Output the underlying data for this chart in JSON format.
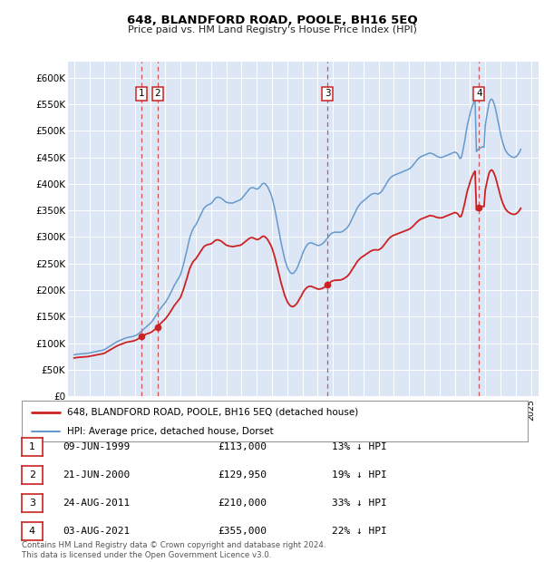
{
  "title": "648, BLANDFORD ROAD, POOLE, BH16 5EQ",
  "subtitle": "Price paid vs. HM Land Registry's House Price Index (HPI)",
  "ylabel_ticks": [
    "£0",
    "£50K",
    "£100K",
    "£150K",
    "£200K",
    "£250K",
    "£300K",
    "£350K",
    "£400K",
    "£450K",
    "£500K",
    "£550K",
    "£600K"
  ],
  "ytick_values": [
    0,
    50000,
    100000,
    150000,
    200000,
    250000,
    300000,
    350000,
    400000,
    450000,
    500000,
    550000,
    600000
  ],
  "ylim": [
    0,
    630000
  ],
  "xlim_start": 1994.6,
  "xlim_end": 2025.5,
  "background_color": "#dce6f5",
  "hpi_line_color": "#6699cc",
  "price_line_color": "#cc2222",
  "sale_marker_color": "#cc2222",
  "dashed_line_color": "#cc4444",
  "legend_label_price": "648, BLANDFORD ROAD, POOLE, BH16 5EQ (detached house)",
  "legend_label_hpi": "HPI: Average price, detached house, Dorset",
  "sales": [
    {
      "num": 1,
      "date": "09-JUN-1999",
      "price": 113000,
      "year": 1999.44,
      "pct": "13%"
    },
    {
      "num": 2,
      "date": "21-JUN-2000",
      "price": 129950,
      "year": 2000.47,
      "pct": "19%"
    },
    {
      "num": 3,
      "date": "24-AUG-2011",
      "price": 210000,
      "year": 2011.65,
      "pct": "33%"
    },
    {
      "num": 4,
      "date": "03-AUG-2021",
      "price": 355000,
      "year": 2021.59,
      "pct": "22%"
    }
  ],
  "table_rows": [
    {
      "num": 1,
      "date": "09-JUN-1999",
      "price": "£113,000",
      "pct": "13% ↓ HPI"
    },
    {
      "num": 2,
      "date": "21-JUN-2000",
      "price": "£129,950",
      "pct": "19% ↓ HPI"
    },
    {
      "num": 3,
      "date": "24-AUG-2011",
      "price": "£210,000",
      "pct": "33% ↓ HPI"
    },
    {
      "num": 4,
      "date": "03-AUG-2021",
      "price": "£355,000",
      "pct": "22% ↓ HPI"
    }
  ],
  "footnote": "Contains HM Land Registry data © Crown copyright and database right 2024.\nThis data is licensed under the Open Government Licence v3.0.",
  "hpi_years": [
    1995,
    1995.08,
    1995.17,
    1995.25,
    1995.33,
    1995.42,
    1995.5,
    1995.58,
    1995.67,
    1995.75,
    1995.83,
    1995.92,
    1996,
    1996.08,
    1996.17,
    1996.25,
    1996.33,
    1996.42,
    1996.5,
    1996.58,
    1996.67,
    1996.75,
    1996.83,
    1996.92,
    1997,
    1997.08,
    1997.17,
    1997.25,
    1997.33,
    1997.42,
    1997.5,
    1997.58,
    1997.67,
    1997.75,
    1997.83,
    1997.92,
    1998,
    1998.08,
    1998.17,
    1998.25,
    1998.33,
    1998.42,
    1998.5,
    1998.58,
    1998.67,
    1998.75,
    1998.83,
    1998.92,
    1999,
    1999.08,
    1999.17,
    1999.25,
    1999.33,
    1999.42,
    1999.5,
    1999.58,
    1999.67,
    1999.75,
    1999.83,
    1999.92,
    2000,
    2000.08,
    2000.17,
    2000.25,
    2000.33,
    2000.42,
    2000.5,
    2000.58,
    2000.67,
    2000.75,
    2000.83,
    2000.92,
    2001,
    2001.08,
    2001.17,
    2001.25,
    2001.33,
    2001.42,
    2001.5,
    2001.58,
    2001.67,
    2001.75,
    2001.83,
    2001.92,
    2002,
    2002.08,
    2002.17,
    2002.25,
    2002.33,
    2002.42,
    2002.5,
    2002.58,
    2002.67,
    2002.75,
    2002.83,
    2002.92,
    2003,
    2003.08,
    2003.17,
    2003.25,
    2003.33,
    2003.42,
    2003.5,
    2003.58,
    2003.67,
    2003.75,
    2003.83,
    2003.92,
    2004,
    2004.08,
    2004.17,
    2004.25,
    2004.33,
    2004.42,
    2004.5,
    2004.58,
    2004.67,
    2004.75,
    2004.83,
    2004.92,
    2005,
    2005.08,
    2005.17,
    2005.25,
    2005.33,
    2005.42,
    2005.5,
    2005.58,
    2005.67,
    2005.75,
    2005.83,
    2005.92,
    2006,
    2006.08,
    2006.17,
    2006.25,
    2006.33,
    2006.42,
    2006.5,
    2006.58,
    2006.67,
    2006.75,
    2006.83,
    2006.92,
    2007,
    2007.08,
    2007.17,
    2007.25,
    2007.33,
    2007.42,
    2007.5,
    2007.58,
    2007.67,
    2007.75,
    2007.83,
    2007.92,
    2008,
    2008.08,
    2008.17,
    2008.25,
    2008.33,
    2008.42,
    2008.5,
    2008.58,
    2008.67,
    2008.75,
    2008.83,
    2008.92,
    2009,
    2009.08,
    2009.17,
    2009.25,
    2009.33,
    2009.42,
    2009.5,
    2009.58,
    2009.67,
    2009.75,
    2009.83,
    2009.92,
    2010,
    2010.08,
    2010.17,
    2010.25,
    2010.33,
    2010.42,
    2010.5,
    2010.58,
    2010.67,
    2010.75,
    2010.83,
    2010.92,
    2011,
    2011.08,
    2011.17,
    2011.25,
    2011.33,
    2011.42,
    2011.5,
    2011.58,
    2011.67,
    2011.75,
    2011.83,
    2011.92,
    2012,
    2012.08,
    2012.17,
    2012.25,
    2012.33,
    2012.42,
    2012.5,
    2012.58,
    2012.67,
    2012.75,
    2012.83,
    2012.92,
    2013,
    2013.08,
    2013.17,
    2013.25,
    2013.33,
    2013.42,
    2013.5,
    2013.58,
    2013.67,
    2013.75,
    2013.83,
    2013.92,
    2014,
    2014.08,
    2014.17,
    2014.25,
    2014.33,
    2014.42,
    2014.5,
    2014.58,
    2014.67,
    2014.75,
    2014.83,
    2014.92,
    2015,
    2015.08,
    2015.17,
    2015.25,
    2015.33,
    2015.42,
    2015.5,
    2015.58,
    2015.67,
    2015.75,
    2015.83,
    2015.92,
    2016,
    2016.08,
    2016.17,
    2016.25,
    2016.33,
    2016.42,
    2016.5,
    2016.58,
    2016.67,
    2016.75,
    2016.83,
    2016.92,
    2017,
    2017.08,
    2017.17,
    2017.25,
    2017.33,
    2017.42,
    2017.5,
    2017.58,
    2017.67,
    2017.75,
    2017.83,
    2017.92,
    2018,
    2018.08,
    2018.17,
    2018.25,
    2018.33,
    2018.42,
    2018.5,
    2018.58,
    2018.67,
    2018.75,
    2018.83,
    2018.92,
    2019,
    2019.08,
    2019.17,
    2019.25,
    2019.33,
    2019.42,
    2019.5,
    2019.58,
    2019.67,
    2019.75,
    2019.83,
    2019.92,
    2020,
    2020.08,
    2020.17,
    2020.25,
    2020.33,
    2020.42,
    2020.5,
    2020.58,
    2020.67,
    2020.75,
    2020.83,
    2020.92,
    2021,
    2021.08,
    2021.17,
    2021.25,
    2021.33,
    2021.42,
    2021.5,
    2021.58,
    2021.67,
    2021.75,
    2021.83,
    2021.92,
    2022,
    2022.08,
    2022.17,
    2022.25,
    2022.33,
    2022.42,
    2022.5,
    2022.58,
    2022.67,
    2022.75,
    2022.83,
    2022.92,
    2023,
    2023.08,
    2023.17,
    2023.25,
    2023.33,
    2023.42,
    2023.5,
    2023.58,
    2023.67,
    2023.75,
    2023.83,
    2023.92,
    2024,
    2024.08,
    2024.17,
    2024.25,
    2024.33
  ],
  "hpi_values": [
    78000,
    78500,
    79000,
    79200,
    79500,
    79800,
    80000,
    80200,
    80300,
    80500,
    80700,
    81000,
    81500,
    82000,
    82500,
    83000,
    83500,
    84000,
    84500,
    85000,
    85500,
    86000,
    86500,
    87000,
    88000,
    89500,
    91000,
    92500,
    94000,
    95500,
    97000,
    98500,
    100000,
    101500,
    103000,
    104000,
    105000,
    106000,
    107000,
    108000,
    109000,
    110000,
    110500,
    111000,
    111500,
    112000,
    112500,
    113000,
    114000,
    115000,
    116500,
    118000,
    120000,
    122000,
    124000,
    126500,
    129000,
    131000,
    133000,
    135000,
    137000,
    140000,
    143000,
    146500,
    150000,
    154000,
    158000,
    162000,
    165000,
    168000,
    171000,
    174000,
    177000,
    181000,
    185000,
    189500,
    194000,
    199000,
    204000,
    209000,
    213000,
    217000,
    221000,
    225000,
    230000,
    238000,
    247000,
    256000,
    266000,
    276000,
    287000,
    297000,
    305000,
    311000,
    316000,
    320000,
    323000,
    328000,
    333000,
    338000,
    343000,
    348000,
    353000,
    356000,
    358000,
    360000,
    361000,
    362000,
    363000,
    366000,
    369000,
    372000,
    374000,
    375000,
    375000,
    374000,
    373000,
    371000,
    369000,
    367000,
    365000,
    365000,
    364000,
    364000,
    364000,
    364000,
    365000,
    366000,
    367000,
    368000,
    369000,
    370000,
    372000,
    375000,
    378000,
    381000,
    384000,
    387000,
    390000,
    392000,
    393000,
    393000,
    392000,
    391000,
    390000,
    391000,
    393000,
    396000,
    399000,
    401000,
    401000,
    399000,
    396000,
    392000,
    387000,
    381000,
    374000,
    365000,
    354000,
    342000,
    330000,
    317000,
    304000,
    291000,
    279000,
    268000,
    258000,
    250000,
    243000,
    238000,
    234000,
    232000,
    231000,
    232000,
    235000,
    238000,
    243000,
    249000,
    255000,
    261000,
    268000,
    274000,
    279000,
    283000,
    286000,
    288000,
    289000,
    289000,
    288000,
    287000,
    286000,
    285000,
    284000,
    284000,
    285000,
    286000,
    288000,
    290000,
    293000,
    296000,
    299000,
    302000,
    305000,
    307000,
    308000,
    309000,
    309000,
    309000,
    309000,
    309000,
    309000,
    310000,
    311000,
    313000,
    315000,
    317000,
    320000,
    324000,
    329000,
    334000,
    339000,
    344000,
    349000,
    354000,
    358000,
    361000,
    364000,
    366000,
    368000,
    370000,
    372000,
    374000,
    376000,
    378000,
    380000,
    381000,
    382000,
    382000,
    382000,
    381000,
    381000,
    383000,
    385000,
    388000,
    392000,
    396000,
    400000,
    404000,
    408000,
    411000,
    413000,
    415000,
    416000,
    417000,
    418000,
    419000,
    420000,
    421000,
    422000,
    423000,
    424000,
    425000,
    426000,
    427000,
    428000,
    430000,
    432000,
    435000,
    438000,
    441000,
    444000,
    447000,
    449000,
    451000,
    452000,
    453000,
    454000,
    455000,
    456000,
    457000,
    458000,
    458000,
    457000,
    456000,
    455000,
    453000,
    452000,
    451000,
    450000,
    450000,
    450000,
    451000,
    452000,
    453000,
    454000,
    455000,
    456000,
    457000,
    458000,
    459000,
    460000,
    459000,
    457000,
    453000,
    448000,
    449000,
    458000,
    470000,
    484000,
    499000,
    512000,
    522000,
    532000,
    541000,
    548000,
    554000,
    558000,
    461000,
    464000,
    466000,
    468000,
    469000,
    470000,
    469000,
    510000,
    525000,
    540000,
    552000,
    558000,
    560000,
    557000,
    551000,
    542000,
    531000,
    519000,
    507000,
    495000,
    485000,
    476000,
    469000,
    463000,
    459000,
    456000,
    454000,
    452000,
    451000,
    450000,
    450000,
    451000,
    453000,
    456000,
    460000,
    465000
  ]
}
